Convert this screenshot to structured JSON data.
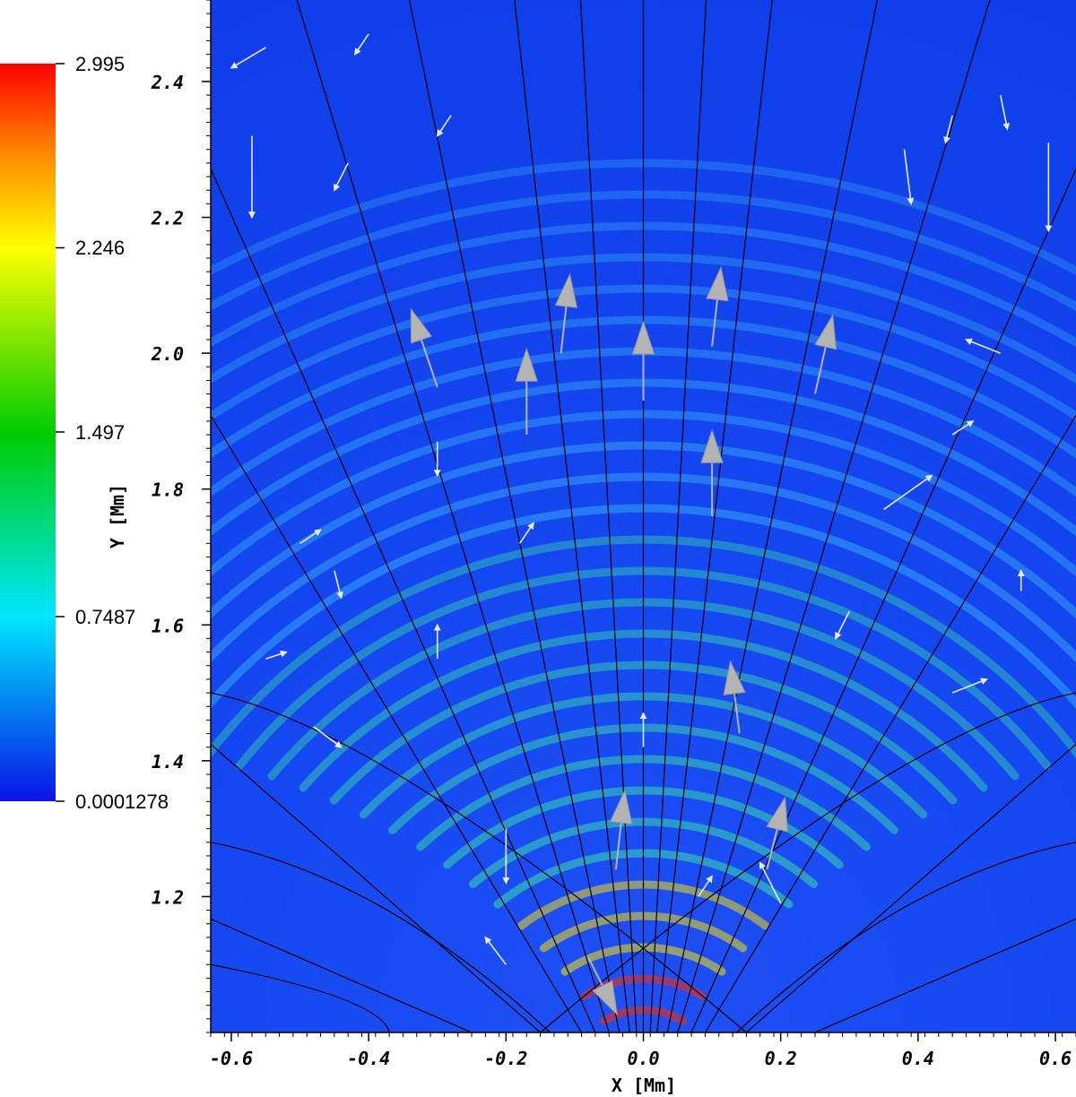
{
  "chart_data": {
    "type": "heatmap",
    "title": "",
    "xlabel": "X  [Mm]",
    "ylabel": "Y  [Mm]",
    "xlim": [
      -0.63,
      0.63
    ],
    "ylim": [
      1.0,
      2.52
    ],
    "x_ticks": [
      {
        "value": -0.6,
        "label": "-0.6"
      },
      {
        "value": -0.4,
        "label": "-0.4"
      },
      {
        "value": -0.2,
        "label": "-0.2"
      },
      {
        "value": 0.0,
        "label": "0.0"
      },
      {
        "value": 0.2,
        "label": "0.2"
      },
      {
        "value": 0.4,
        "label": "0.4"
      },
      {
        "value": 0.6,
        "label": "0.6"
      }
    ],
    "y_ticks": [
      {
        "value": 1.2,
        "label": "1.2"
      },
      {
        "value": 1.4,
        "label": "1.4"
      },
      {
        "value": 1.6,
        "label": "1.6"
      },
      {
        "value": 1.8,
        "label": "1.8"
      },
      {
        "value": 2.0,
        "label": "2.0"
      },
      {
        "value": 2.2,
        "label": "2.2"
      },
      {
        "value": 2.4,
        "label": "2.4"
      }
    ],
    "colorbar": {
      "min": 0.0001278,
      "max": 2.995,
      "colormap": "rainbow (blue-cyan-green-yellow-red)",
      "colors": [
        "#0a14e6",
        "#00e6ff",
        "#00cc00",
        "#ffff00",
        "#ff8c00",
        "#ff0000"
      ],
      "ticks": [
        {
          "value": 2.995,
          "label": "2.995"
        },
        {
          "value": 2.246,
          "label": "2.246"
        },
        {
          "value": 1.497,
          "label": "1.497"
        },
        {
          "value": 0.7487,
          "label": "0.7487"
        },
        {
          "value": 0.0001278,
          "label": "0.0001278"
        }
      ]
    },
    "field_lines": {
      "color": "#000000",
      "footpoints_x": [
        -0.09,
        -0.07,
        -0.05,
        -0.035,
        -0.02,
        -0.01,
        0.0,
        0.01,
        0.02,
        0.035,
        0.05,
        0.07,
        0.09
      ],
      "spread_factor": 5.2
    },
    "vectors": {
      "color": "#e8e8e8",
      "large_glyph_color": "#b4b4b4"
    },
    "grid": false,
    "legend": "none"
  }
}
